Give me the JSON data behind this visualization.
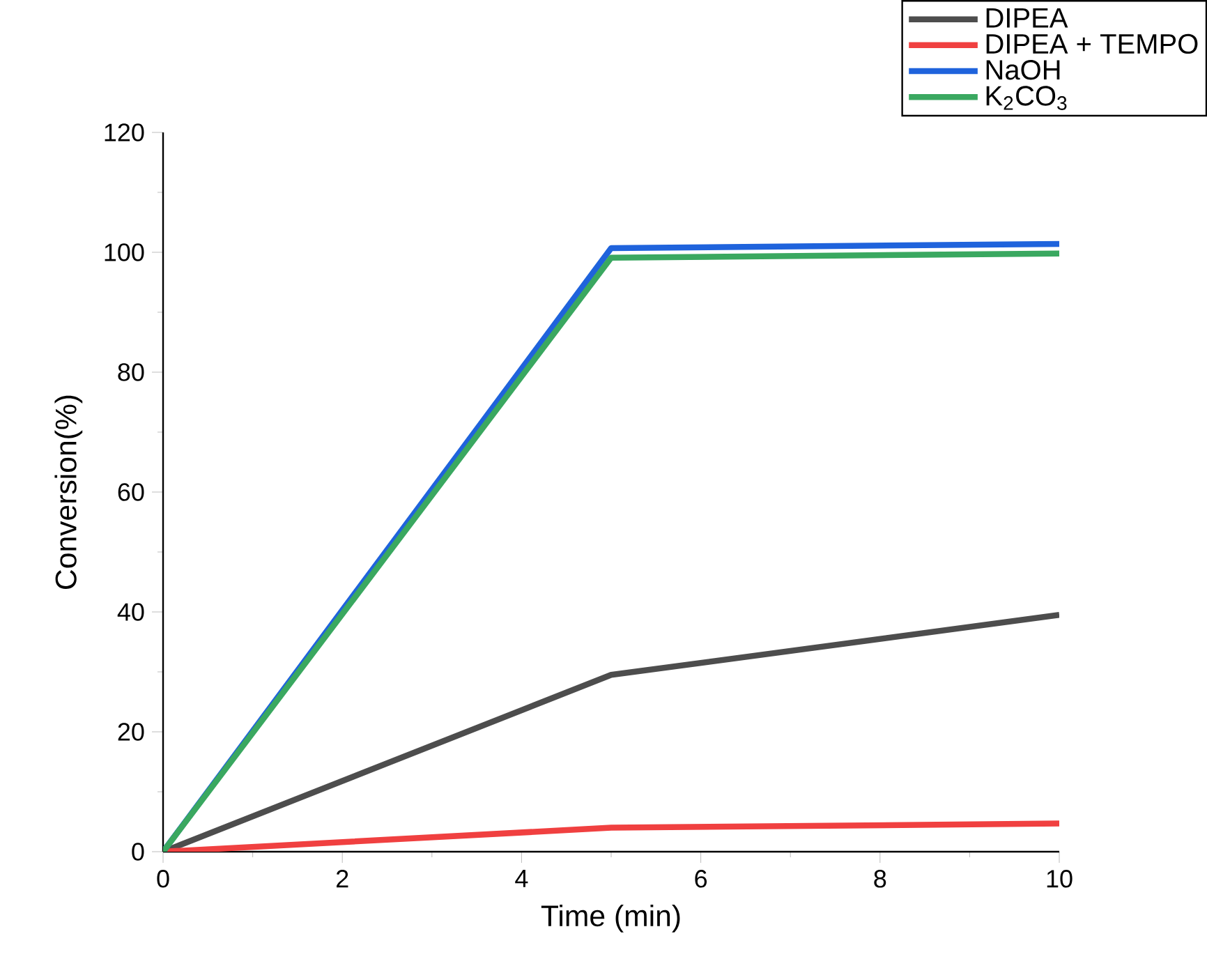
{
  "chart_data": {
    "type": "line",
    "xlabel": "Time (min)",
    "ylabel": "Conversion(%)",
    "x": [
      0,
      5,
      10
    ],
    "series": [
      {
        "name": "DIPEA",
        "color": "#4d4d4d",
        "values": [
          0,
          29.5,
          39.5
        ]
      },
      {
        "name": "DIPEA + TEMPO",
        "color": "#f04040",
        "values": [
          0,
          4.0,
          4.7
        ]
      },
      {
        "name": "NaOH",
        "color": "#1f63dc",
        "values": [
          0,
          100.7,
          101.4
        ]
      },
      {
        "name": "K$_{2}$CO$_{3}$",
        "color": "#3aa860",
        "values": [
          0,
          99.1,
          99.8
        ]
      }
    ],
    "xlim": [
      0,
      10
    ],
    "xticks": [
      0,
      2,
      4,
      6,
      8,
      10
    ],
    "ylim": [
      0,
      120
    ],
    "yticks": [
      0,
      20,
      40,
      60,
      80,
      100,
      120
    ],
    "legend": "top right"
  }
}
